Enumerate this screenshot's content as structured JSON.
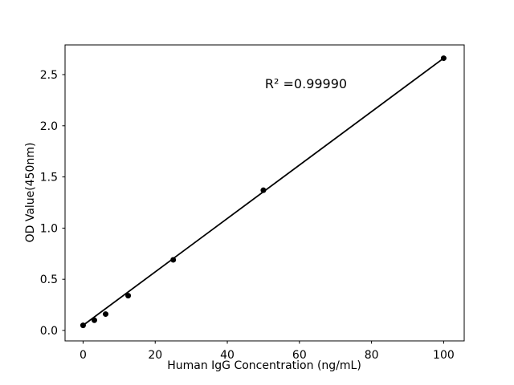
{
  "chart_data": {
    "type": "scatter",
    "annotation": "R² =0.99990",
    "xlabel": "Human IgG Concentration (ng/mL)",
    "ylabel": "OD Value(450nm)",
    "x": [
      0,
      3.125,
      6.25,
      12.5,
      25,
      50,
      100
    ],
    "y": [
      0.05,
      0.1,
      0.16,
      0.34,
      0.69,
      1.37,
      2.66
    ],
    "fit_line": {
      "x": [
        0,
        100
      ],
      "y": [
        0.05,
        2.66
      ]
    },
    "xlim": [
      -5.0,
      105.7
    ],
    "ylim": [
      -0.102,
      2.79
    ],
    "xticks": [
      {
        "v": 0,
        "label": "0"
      },
      {
        "v": 20,
        "label": "20"
      },
      {
        "v": 40,
        "label": "40"
      },
      {
        "v": 60,
        "label": "60"
      },
      {
        "v": 80,
        "label": "80"
      },
      {
        "v": 100,
        "label": "100"
      }
    ],
    "yticks": [
      {
        "v": 0.0,
        "label": "0.0"
      },
      {
        "v": 0.5,
        "label": "0.5"
      },
      {
        "v": 1.0,
        "label": "1.0"
      },
      {
        "v": 1.5,
        "label": "1.5"
      },
      {
        "v": 2.0,
        "label": "2.0"
      },
      {
        "v": 2.5,
        "label": "2.5"
      }
    ],
    "grid": false,
    "legend_position": "none",
    "marker_color": "#000000",
    "line_color": "#000000",
    "axis_color": "#000000",
    "background_color": "#ffffff"
  }
}
